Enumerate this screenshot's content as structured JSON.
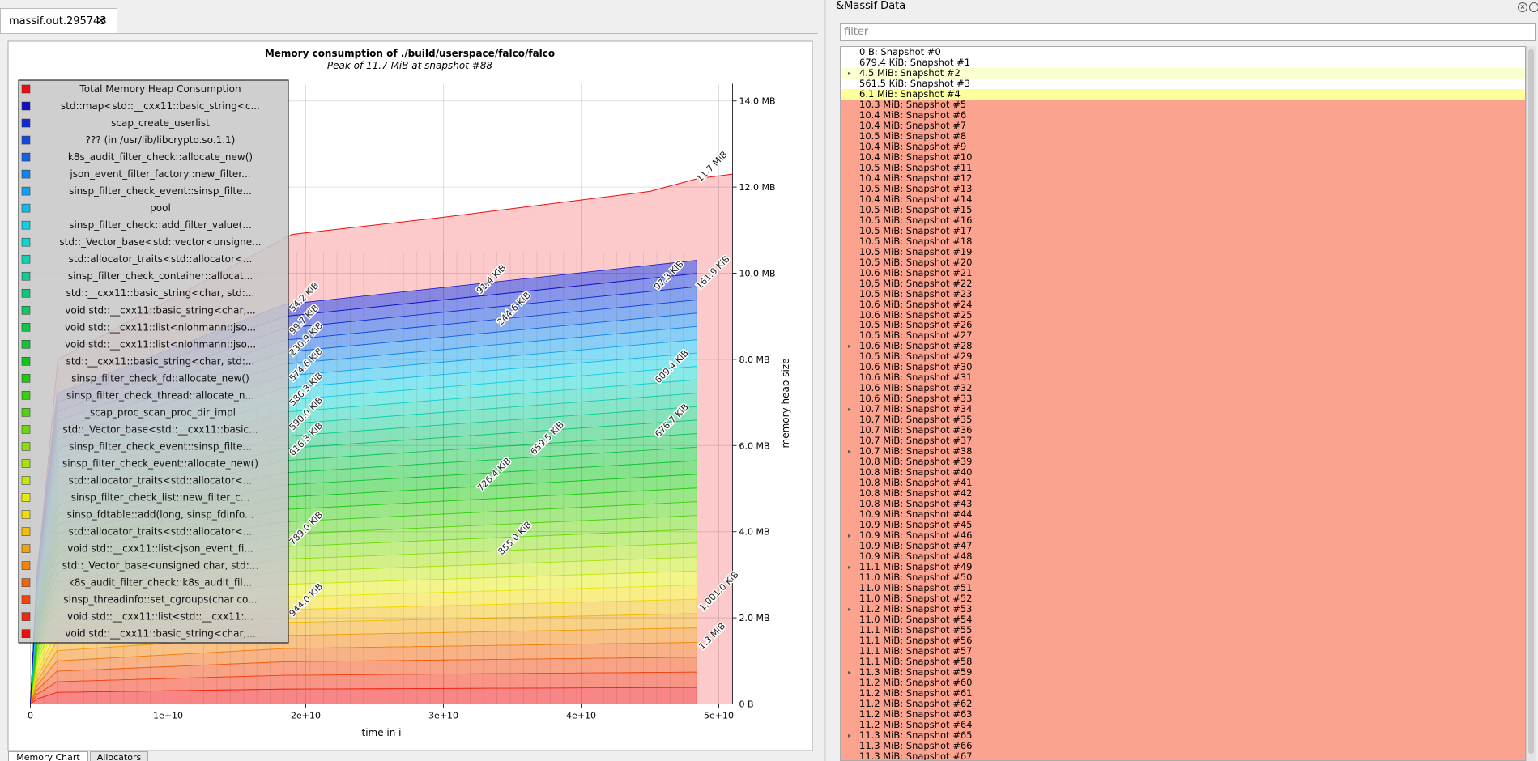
{
  "tab": "massif.out.295743",
  "bottom_tabs": [
    "Memory Chart",
    "Allocators"
  ],
  "chart_data": {
    "type": "area",
    "title": "Memory consumption of ./build/userspace/falco/falco",
    "subtitle": "Peak of 11.7 MiB at snapshot #88",
    "x_label": "time in i",
    "y_label": "memory heap size",
    "xlim": [
      0,
      51000000000
    ],
    "xticks": [
      0,
      {
        "value": 10000000000,
        "label": "1e+10"
      },
      {
        "value": 20000000000,
        "label": "2e+10"
      },
      {
        "value": 30000000000,
        "label": "3e+10"
      },
      {
        "value": 40000000000,
        "label": "4e+10"
      },
      {
        "value": 50000000000,
        "label": "5e+10"
      }
    ],
    "ylim": [
      0,
      14.4
    ],
    "yticks": [
      {
        "value": 0,
        "label": "0 B"
      },
      {
        "value": 2,
        "label": "2.0 MB"
      },
      {
        "value": 4,
        "label": "4.0 MB"
      },
      {
        "value": 6,
        "label": "6.0 MB"
      },
      {
        "value": 8,
        "label": "8.0 MB"
      },
      {
        "value": 10,
        "label": "10.0 MB"
      },
      {
        "value": 12,
        "label": "12.0 MB"
      },
      {
        "value": 14,
        "label": "14.0 MB"
      }
    ],
    "series": [
      {
        "name": "Total Memory Heap Consumption",
        "color": "hsl(0, 90%, 50%)"
      },
      {
        "name": "std::map<std::__cxx11::basic_string<c...",
        "color": "hsl(240, 85%, 42%)"
      },
      {
        "name": "scap_create_userlist",
        "color": "hsl(232, 85%, 45%)"
      },
      {
        "name": "??? (in /usr/lib/libcrypto.so.1.1)",
        "color": "hsl(224, 85%, 47%)"
      },
      {
        "name": "k8s_audit_filter_check::allocate_new()",
        "color": "hsl(217, 85%, 48%)"
      },
      {
        "name": "json_event_filter_factory::new_filter...",
        "color": "hsl(209, 85%, 50%)"
      },
      {
        "name": "sinsp_filter_check_event::sinsp_filte...",
        "color": "hsl(201, 85%, 50%)"
      },
      {
        "name": "pool",
        "color": "hsl(194, 85%, 50%)"
      },
      {
        "name": "sinsp_filter_check::add_filter_value(...",
        "color": "hsl(186, 85%, 48%)"
      },
      {
        "name": "std::_Vector_base<std::vector<unsigne...",
        "color": "hsl(178, 85%, 45%)"
      },
      {
        "name": "std::allocator_traits<std::allocator<...",
        "color": "hsl(170, 85%, 44%)"
      },
      {
        "name": "sinsp_filter_check_container::allocat...",
        "color": "hsl(163, 85%, 43%)"
      },
      {
        "name": "std::__cxx11::basic_string<char, std:...",
        "color": "hsl(155, 85%, 42%)"
      },
      {
        "name": "void std::__cxx11::basic_string<char,...",
        "color": "hsl(147, 85%, 42%)"
      },
      {
        "name": "void std::__cxx11::list<nlohmann::jso...",
        "color": "hsl(139, 85%, 42%)"
      },
      {
        "name": "void std::__cxx11::list<nlohmann::jso...",
        "color": "hsl(132, 85%, 42%)"
      },
      {
        "name": "std::__cxx11::basic_string<char, std:...",
        "color": "hsl(124, 85%, 42%)"
      },
      {
        "name": "sinsp_filter_check_fd::allocate_new()",
        "color": "hsl(116, 85%, 43%)"
      },
      {
        "name": "sinsp_filter_check_thread::allocate_n...",
        "color": "hsl(108, 85%, 44%)"
      },
      {
        "name": "_scap_proc_scan_proc_dir_impl",
        "color": "hsl(101, 85%, 45%)"
      },
      {
        "name": "std::_Vector_base<std::__cxx11::basic...",
        "color": "hsl(93, 85%, 46%)"
      },
      {
        "name": "sinsp_filter_check_event::sinsp_filte...",
        "color": "hsl(85, 85%, 47%)"
      },
      {
        "name": "sinsp_filter_check_event::allocate_new()",
        "color": "hsl(77, 85%, 48%)"
      },
      {
        "name": "std::allocator_traits<std::allocator<...",
        "color": "hsl(70, 85%, 49%)"
      },
      {
        "name": "sinsp_filter_check_list::new_filter_c...",
        "color": "hsl(62, 85%, 50%)"
      },
      {
        "name": "sinsp_fdtable::add(long, sinsp_fdinfo...",
        "color": "hsl(54, 90%, 50%)"
      },
      {
        "name": "std::allocator_traits<std::allocator<...",
        "color": "hsl(46, 90%, 50%)"
      },
      {
        "name": "void std::__cxx11::list<json_event_fi...",
        "color": "hsl(39, 90%, 50%)"
      },
      {
        "name": "std::_Vector_base<unsigned char, std:...",
        "color": "hsl(31, 90%, 50%)"
      },
      {
        "name": "k8s_audit_filter_check::k8s_audit_fil...",
        "color": "hsl(23, 90%, 50%)"
      },
      {
        "name": "sinsp_threadinfo::set_cgroups(char co...",
        "color": "hsl(15, 90%, 50%)"
      },
      {
        "name": "void std::__cxx11::list<std::__cxx11:...",
        "color": "hsl(8, 90%, 50%)"
      },
      {
        "name": "void std::__cxx11::basic_string<char,...",
        "color": "hsl(0, 90%, 50%)"
      }
    ],
    "annotations": [
      "11.7 MiB",
      "161.9 KiB",
      "97.3 KiB",
      "91.4 KiB",
      "244.6 KiB",
      "609.4 KiB",
      "676.7 KiB",
      "659.5 KiB",
      "726.4 KiB",
      "855.0 KiB",
      "1,001.0 KiB",
      "1.3 MiB",
      "54.2 KiB",
      "99.7 KiB",
      "230.9 KiB",
      "574.6 KiB",
      "586.3 KiB",
      "590.0 KiB",
      "616.3 KiB",
      "789.0 KiB",
      "944.0 KiB"
    ]
  },
  "panel": {
    "title": "&Massif Data",
    "filter_placeholder": "filter",
    "snapshots": [
      "0 B: Snapshot #0",
      "679.4 KiB: Snapshot #1",
      "4.5 MiB: Snapshot #2",
      "561.5 KiB: Snapshot #3",
      "6.1 MiB: Snapshot #4",
      "10.3 MiB: Snapshot #5",
      "10.4 MiB: Snapshot #6",
      "10.4 MiB: Snapshot #7",
      "10.5 MiB: Snapshot #8",
      "10.4 MiB: Snapshot #9",
      "10.4 MiB: Snapshot #10",
      "10.5 MiB: Snapshot #11",
      "10.4 MiB: Snapshot #12",
      "10.5 MiB: Snapshot #13",
      "10.4 MiB: Snapshot #14",
      "10.5 MiB: Snapshot #15",
      "10.5 MiB: Snapshot #16",
      "10.5 MiB: Snapshot #17",
      "10.5 MiB: Snapshot #18",
      "10.5 MiB: Snapshot #19",
      "10.5 MiB: Snapshot #20",
      "10.6 MiB: Snapshot #21",
      "10.5 MiB: Snapshot #22",
      "10.5 MiB: Snapshot #23",
      "10.6 MiB: Snapshot #24",
      "10.6 MiB: Snapshot #25",
      "10.5 MiB: Snapshot #26",
      "10.5 MiB: Snapshot #27",
      "10.6 MiB: Snapshot #28",
      "10.5 MiB: Snapshot #29",
      "10.6 MiB: Snapshot #30",
      "10.6 MiB: Snapshot #31",
      "10.6 MiB: Snapshot #32",
      "10.6 MiB: Snapshot #33",
      "10.7 MiB: Snapshot #34",
      "10.7 MiB: Snapshot #35",
      "10.7 MiB: Snapshot #36",
      "10.7 MiB: Snapshot #37",
      "10.7 MiB: Snapshot #38",
      "10.8 MiB: Snapshot #39",
      "10.8 MiB: Snapshot #40",
      "10.8 MiB: Snapshot #41",
      "10.8 MiB: Snapshot #42",
      "10.8 MiB: Snapshot #43",
      "10.9 MiB: Snapshot #44",
      "10.9 MiB: Snapshot #45",
      "10.9 MiB: Snapshot #46",
      "10.9 MiB: Snapshot #47",
      "10.9 MiB: Snapshot #48",
      "11.1 MiB: Snapshot #49",
      "11.0 MiB: Snapshot #50",
      "11.0 MiB: Snapshot #51",
      "11.0 MiB: Snapshot #52",
      "11.2 MiB: Snapshot #53",
      "11.0 MiB: Snapshot #54",
      "11.1 MiB: Snapshot #55",
      "11.1 MiB: Snapshot #56",
      "11.1 MiB: Snapshot #57",
      "11.1 MiB: Snapshot #58",
      "11.3 MiB: Snapshot #59",
      "11.2 MiB: Snapshot #60",
      "11.2 MiB: Snapshot #61",
      "11.2 MiB: Snapshot #62",
      "11.2 MiB: Snapshot #63",
      "11.2 MiB: Snapshot #64",
      "11.3 MiB: Snapshot #65",
      "11.3 MiB: Snapshot #66",
      "11.3 MiB: Snapshot #67"
    ]
  }
}
